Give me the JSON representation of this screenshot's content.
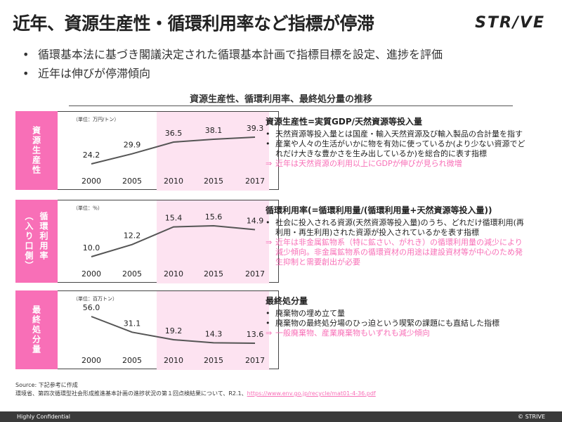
{
  "title": "近年、資源生産性・循環利用率など指標が停滞",
  "logo": "STR/VE",
  "bullets": [
    "循環基本法に基づき閣議決定された循環基本計画で指標目標を設定、進捗を評価",
    "近年は伸びが停滞傾向"
  ],
  "section_title": "資源生産性、循環利用率、最終処分量の推移",
  "colors": {
    "accent": "#f86fb7",
    "highlight_band": "#fde3f1",
    "line": "#555555"
  },
  "panels": [
    {
      "sidebar_label": "資源生産性",
      "unit": "（単位：万円/トン）",
      "desc_heading": "資源生産性=実質GDP/天然資源等投入量",
      "desc_items": [
        "天然資源等投入量とは国産・輸入天然資源及び輸入製品の合計量を指す",
        "産業や人々の生活がいかに物を有効に使っているか(より少ない資源でどれだけ大きな豊かさを生み出しているか)を総合的に表す指標"
      ],
      "desc_highlight": "近年は天然資源の利用以上にGDPが伸びが見られ微増"
    },
    {
      "sidebar_label": "循環利用率",
      "sidebar_sub": "（入り口側）",
      "unit": "（単位：％）",
      "desc_heading": "循環利用率(=循環利用量/(循環利用量+天然資源等投入量))",
      "desc_items": [
        "社会に投入される資源(天然資源等投入量)のうち、どれだけ循環利用(再利用・再生利用)された資源が投入されているかを表す指標"
      ],
      "desc_highlight": "近年は非金属鉱物系（特に鉱さい、がれき）の循環利用量の減少により減少傾向。非金属鉱物系の循環資材の用途は建設資材等が中心のため発生抑制と需要創出が必要"
    },
    {
      "sidebar_label": "最終処分量",
      "unit": "（単位：百万トン）",
      "desc_heading": "最終処分量",
      "desc_items": [
        "廃棄物の埋め立て量",
        "廃棄物の最終処分場のひっ迫という喫緊の課題にも直結した指標"
      ],
      "desc_highlight": "一般廃棄物、産業廃棄物もいずれも減少傾向"
    }
  ],
  "chart_data": [
    {
      "type": "line",
      "x": [
        "2000",
        "2005",
        "2010",
        "2015",
        "2017"
      ],
      "series": [
        {
          "values": [
            24.2,
            29.9,
            36.5,
            38.1,
            39.3
          ]
        }
      ],
      "highlight_range": [
        "2010",
        "2017"
      ]
    },
    {
      "type": "line",
      "x": [
        "2000",
        "2005",
        "2010",
        "2015",
        "2017"
      ],
      "series": [
        {
          "values": [
            10.0,
            12.2,
            15.4,
            15.6,
            14.9
          ]
        }
      ],
      "highlight_range": [
        "2010",
        "2017"
      ]
    },
    {
      "type": "line",
      "x": [
        "2000",
        "2005",
        "2010",
        "2015",
        "2017"
      ],
      "series": [
        {
          "values": [
            56.0,
            31.1,
            19.2,
            14.3,
            13.6
          ]
        }
      ],
      "highlight_range": [
        "2010",
        "2017"
      ]
    }
  ],
  "source": {
    "line1": "Source: 下記参考に作成",
    "line2": "環境省、第四次循環型社会形成推進基本計画の進捗状況の第１回点検結果について、R2.1、",
    "link": "https://www.env.go.jp/recycle/mat01-4-36.pdf"
  },
  "footer": {
    "left": "Highly Confidential",
    "right": "© STRIVE"
  }
}
